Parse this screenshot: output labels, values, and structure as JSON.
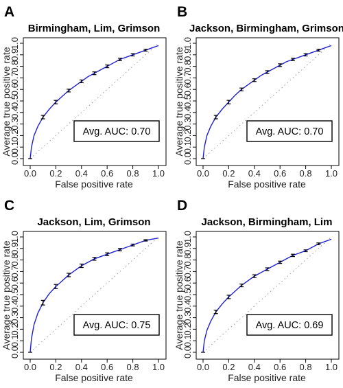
{
  "chart_data": [
    {
      "type": "line",
      "panel": "A",
      "title": "Birmingham, Lim, Grimson",
      "xlabel": "False positive rate",
      "ylabel": "Average true positive rate",
      "xlim": [
        0,
        1
      ],
      "ylim": [
        0,
        1
      ],
      "xticks": [
        "0.0",
        "0.2",
        "0.4",
        "0.6",
        "0.8",
        "1.0"
      ],
      "yticks": [
        "0.0",
        "0.1",
        "0.2",
        "0.3",
        "0.4",
        "0.5",
        "0.6",
        "0.7",
        "0.8",
        "0.9",
        "1.0"
      ],
      "auc_label": "Avg. AUC: 0.70",
      "x": [
        0,
        0.01,
        0.03,
        0.06,
        0.1,
        0.15,
        0.2,
        0.25,
        0.3,
        0.35,
        0.4,
        0.45,
        0.5,
        0.55,
        0.6,
        0.65,
        0.7,
        0.75,
        0.8,
        0.85,
        0.9,
        0.95,
        1.0
      ],
      "y": [
        0,
        0.1,
        0.2,
        0.28,
        0.36,
        0.43,
        0.49,
        0.54,
        0.59,
        0.63,
        0.67,
        0.71,
        0.74,
        0.77,
        0.8,
        0.83,
        0.86,
        0.88,
        0.9,
        0.92,
        0.94,
        0.96,
        0.98
      ],
      "error_x": [
        0.1,
        0.2,
        0.3,
        0.4,
        0.5,
        0.6,
        0.7,
        0.8,
        0.9
      ],
      "error_y": [
        0.36,
        0.49,
        0.59,
        0.67,
        0.74,
        0.8,
        0.86,
        0.9,
        0.94
      ],
      "error_half": [
        0.015,
        0.015,
        0.012,
        0.012,
        0.012,
        0.012,
        0.01,
        0.01,
        0.008
      ]
    },
    {
      "type": "line",
      "panel": "B",
      "title": "Jackson, Birmingham, Grimson",
      "xlabel": "False positive rate",
      "ylabel": "Average true positive rate",
      "xlim": [
        0,
        1
      ],
      "ylim": [
        0,
        1
      ],
      "xticks": [
        "0.0",
        "0.2",
        "0.4",
        "0.6",
        "0.8",
        "1.0"
      ],
      "yticks": [
        "0.0",
        "0.1",
        "0.2",
        "0.3",
        "0.4",
        "0.5",
        "0.6",
        "0.7",
        "0.8",
        "0.9",
        "1.0"
      ],
      "auc_label": "Avg. AUC: 0.70",
      "x": [
        0,
        0.01,
        0.03,
        0.06,
        0.1,
        0.15,
        0.2,
        0.25,
        0.3,
        0.35,
        0.4,
        0.45,
        0.5,
        0.55,
        0.6,
        0.65,
        0.7,
        0.75,
        0.8,
        0.85,
        0.9,
        0.95,
        1.0
      ],
      "y": [
        0,
        0.1,
        0.2,
        0.28,
        0.36,
        0.43,
        0.49,
        0.55,
        0.6,
        0.64,
        0.68,
        0.72,
        0.75,
        0.78,
        0.81,
        0.84,
        0.86,
        0.88,
        0.9,
        0.92,
        0.94,
        0.96,
        0.98
      ],
      "error_x": [
        0.1,
        0.2,
        0.3,
        0.4,
        0.5,
        0.6,
        0.7,
        0.8,
        0.9
      ],
      "error_y": [
        0.36,
        0.49,
        0.6,
        0.68,
        0.75,
        0.81,
        0.86,
        0.9,
        0.94
      ],
      "error_half": [
        0.015,
        0.015,
        0.012,
        0.012,
        0.012,
        0.012,
        0.01,
        0.01,
        0.008
      ]
    },
    {
      "type": "line",
      "panel": "C",
      "title": "Jackson, Lim, Grimson",
      "xlabel": "False positive rate",
      "ylabel": "Average true positive rate",
      "xlim": [
        0,
        1
      ],
      "ylim": [
        0,
        1
      ],
      "xticks": [
        "0.0",
        "0.2",
        "0.4",
        "0.6",
        "0.8",
        "1.0"
      ],
      "yticks": [
        "0.0",
        "0.1",
        "0.2",
        "0.3",
        "0.4",
        "0.5",
        "0.6",
        "0.7",
        "0.8",
        "0.9",
        "1.0"
      ],
      "auc_label": "Avg. AUC: 0.75",
      "x": [
        0,
        0.01,
        0.03,
        0.06,
        0.1,
        0.15,
        0.2,
        0.25,
        0.3,
        0.35,
        0.4,
        0.45,
        0.5,
        0.55,
        0.6,
        0.65,
        0.7,
        0.75,
        0.8,
        0.85,
        0.9,
        0.95,
        1.0
      ],
      "y": [
        0,
        0.12,
        0.24,
        0.34,
        0.43,
        0.51,
        0.57,
        0.62,
        0.67,
        0.71,
        0.75,
        0.78,
        0.81,
        0.83,
        0.85,
        0.87,
        0.89,
        0.91,
        0.93,
        0.95,
        0.97,
        0.98,
        0.99
      ],
      "error_x": [
        0.1,
        0.2,
        0.3,
        0.4,
        0.5,
        0.6,
        0.7,
        0.8,
        0.9
      ],
      "error_y": [
        0.43,
        0.57,
        0.67,
        0.75,
        0.81,
        0.85,
        0.89,
        0.93,
        0.97
      ],
      "error_half": [
        0.02,
        0.018,
        0.015,
        0.015,
        0.012,
        0.012,
        0.01,
        0.008,
        0.006
      ]
    },
    {
      "type": "line",
      "panel": "D",
      "title": "Jackson, Birmingham, Lim",
      "xlabel": "False positive rate",
      "ylabel": "Average true positive rate",
      "xlim": [
        0,
        1
      ],
      "ylim": [
        0,
        1
      ],
      "xticks": [
        "0.0",
        "0.2",
        "0.4",
        "0.6",
        "0.8",
        "1.0"
      ],
      "yticks": [
        "0.0",
        "0.1",
        "0.2",
        "0.3",
        "0.4",
        "0.5",
        "0.6",
        "0.7",
        "0.8",
        "0.9",
        "1.0"
      ],
      "auc_label": "Avg. AUC: 0.69",
      "x": [
        0,
        0.01,
        0.03,
        0.06,
        0.1,
        0.15,
        0.2,
        0.25,
        0.3,
        0.35,
        0.4,
        0.45,
        0.5,
        0.55,
        0.6,
        0.65,
        0.7,
        0.75,
        0.8,
        0.85,
        0.9,
        0.95,
        1.0
      ],
      "y": [
        0,
        0.1,
        0.19,
        0.27,
        0.35,
        0.42,
        0.48,
        0.53,
        0.58,
        0.62,
        0.66,
        0.69,
        0.72,
        0.75,
        0.78,
        0.81,
        0.84,
        0.86,
        0.88,
        0.91,
        0.94,
        0.96,
        0.98
      ],
      "error_x": [
        0.1,
        0.2,
        0.3,
        0.4,
        0.5,
        0.6,
        0.7,
        0.8,
        0.9
      ],
      "error_y": [
        0.35,
        0.48,
        0.58,
        0.66,
        0.72,
        0.78,
        0.84,
        0.88,
        0.94
      ],
      "error_half": [
        0.015,
        0.015,
        0.012,
        0.012,
        0.012,
        0.01,
        0.01,
        0.008,
        0.008
      ]
    }
  ]
}
